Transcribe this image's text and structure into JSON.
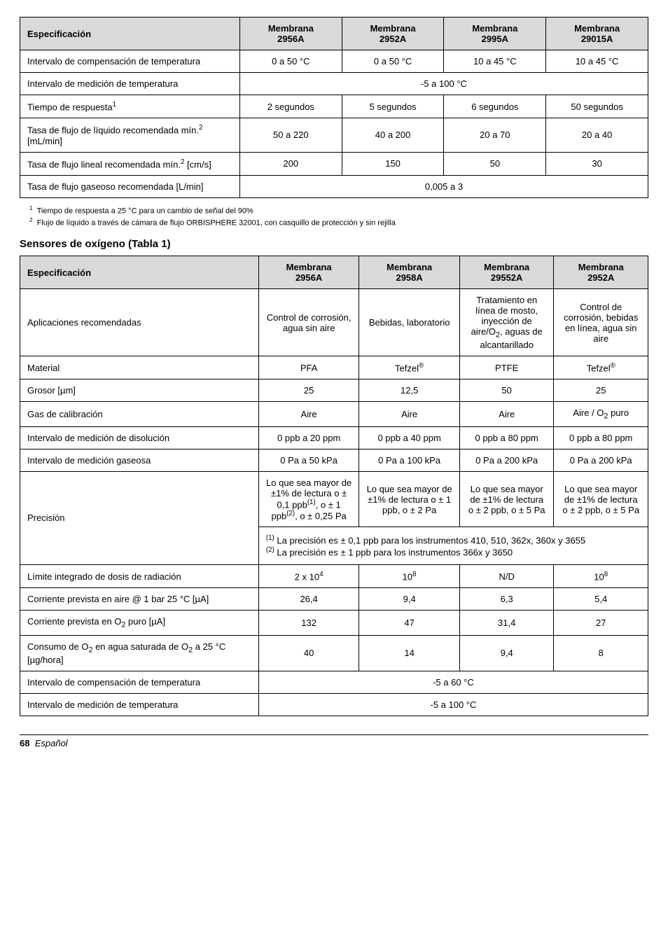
{
  "table1": {
    "headers": [
      "Especificación",
      "Membrana 2956A",
      "Membrana 2952A",
      "Membrana 2995A",
      "Membrana 29015A"
    ],
    "rows": [
      {
        "label": "Intervalo de compensación de temperatura",
        "cells": [
          "0 a 50 °C",
          "0 a 50 °C",
          "10 a 45 °C",
          "10 a 45 °C"
        ]
      },
      {
        "label": "Intervalo de medición de temperatura",
        "span4": "-5 a 100 °C"
      },
      {
        "label_html": "Tiempo de respuesta<sup>1</sup>",
        "cells": [
          "2 segundos",
          "5 segundos",
          "6 segundos",
          "50 segundos"
        ]
      },
      {
        "label_html": "Tasa de flujo de líquido recomendada mín.<sup>2</sup> [mL/min]",
        "cells": [
          "50 a 220",
          "40 a 200",
          "20 a 70",
          "20 a 40"
        ]
      },
      {
        "label_html": "Tasa de flujo lineal recomendada mín.<sup>2</sup> [cm/s]",
        "cells": [
          "200",
          "150",
          "50",
          "30"
        ]
      },
      {
        "label": "Tasa de flujo gaseoso recomendada [L/min]",
        "span4": "0,005 a 3"
      }
    ],
    "footnotes": [
      {
        "n": "1",
        "text": "Tiempo de respuesta a 25 °C para un cambio de señal del 90%"
      },
      {
        "n": "2",
        "text": "Flujo de líquido a través de cámara de flujo ORBISPHERE 32001, con casquillo de protección y sin rejilla"
      }
    ]
  },
  "sectionTitle": "Sensores de oxígeno (Tabla 1)",
  "table2": {
    "headers": [
      "Especificación",
      "Membrana 2956A",
      "Membrana 2958A",
      "Membrana 29552A",
      "Membrana 2952A"
    ],
    "rows": [
      {
        "label": "Aplicaciones recomendadas",
        "cells_html": [
          "Control de corrosión, agua sin aire",
          "Bebidas, laboratorio",
          "Tratamiento en línea de mosto, inyección de aire/O<sub>2</sub>, aguas de alcantarillado",
          "Control de corrosión, bebidas en línea, agua sin aire"
        ]
      },
      {
        "label": "Material",
        "cells_html": [
          "PFA",
          "Tefzel<sup>®</sup>",
          "PTFE",
          "Tefzel<sup>®</sup>"
        ]
      },
      {
        "label": "Grosor [µm]",
        "cells": [
          "25",
          "12,5",
          "50",
          "25"
        ]
      },
      {
        "label": "Gas de calibración",
        "cells_html": [
          "Aire",
          "Aire",
          "Aire",
          "Aire / O<sub>2</sub> puro"
        ]
      },
      {
        "label": "Intervalo de medición de disolución",
        "cells": [
          "0 ppb a 20 ppm",
          "0 ppb a 40 ppm",
          "0 ppb a 80 ppm",
          "0 ppb a 80 ppm"
        ]
      },
      {
        "label": "Intervalo de medición gaseosa",
        "cells": [
          "0 Pa a 50 kPa",
          "0 Pa a 100 kPa",
          "0 Pa a 200 kPa",
          "0 Pa a 200 kPa"
        ]
      },
      {
        "type": "precision",
        "label": "Precisión",
        "cells_html": [
          "Lo que sea mayor de ±1% de lectura o ± 0,1 ppb<sup>(1)</sup>, o ± 1 ppb<sup>(2)</sup>, o ± 0,25 Pa",
          "Lo que sea mayor de ±1% de lectura o ± 1 ppb, o ± 2 Pa",
          "Lo que sea mayor de ±1% de lectura o ± 2 ppb, o ± 5 Pa",
          "Lo que sea mayor de ±1% de lectura o ± 2 ppb, o ± 5 Pa"
        ],
        "nested_html": "<sup>(1)</sup> La precisión es ± 0,1 ppb para los instrumentos 410, 510, 362x, 360x y 3655<br><sup>(2)</sup> La precisión es ± 1 ppb para los instrumentos 366x y 3650"
      },
      {
        "label": "Límite integrado de dosis de radiación",
        "cells_html": [
          "2 x 10<sup>4</sup>",
          "10<sup>8</sup>",
          "N/D",
          "10<sup>8</sup>"
        ]
      },
      {
        "label": "Corriente prevista en aire @ 1 bar 25 °C [µA]",
        "cells": [
          "26,4",
          "9,4",
          "6,3",
          "5,4"
        ]
      },
      {
        "label_html": "Corriente prevista en O<sub>2</sub> puro [µA]",
        "cells": [
          "132",
          "47",
          "31,4",
          "27"
        ]
      },
      {
        "label_html": "Consumo de O<sub>2</sub> en agua saturada de O<sub>2</sub> a 25 °C [µg/hora]",
        "cells": [
          "40",
          "14",
          "9,4",
          "8"
        ]
      },
      {
        "label": "Intervalo de compensación de temperatura",
        "span4": "-5 a 60 °C"
      },
      {
        "label": "Intervalo de medición de temperatura",
        "span4": "-5 a 100 °C"
      }
    ]
  },
  "colWidths1": [
    "35%",
    "16.25%",
    "16.25%",
    "16.25%",
    "16.25%"
  ],
  "colWidths2": [
    "38%",
    "16%",
    "16%",
    "15%",
    "15%"
  ],
  "footer": {
    "page": "68",
    "section": "Español"
  }
}
